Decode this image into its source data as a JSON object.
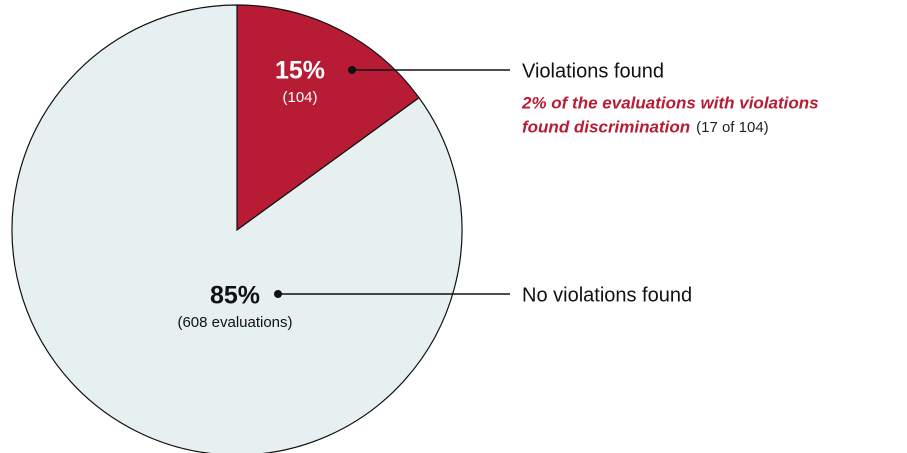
{
  "chart_data": {
    "type": "pie",
    "categories": [
      "Violations found",
      "No violations found"
    ],
    "values": [
      15,
      85
    ],
    "value_labels": [
      "15%",
      "85%"
    ],
    "count_labels": [
      "(104)",
      "(608 evaluations)"
    ],
    "colors": [
      "#b71c34",
      "#e6f0f0"
    ],
    "annotation": [
      "2% of the evaluations with violations",
      "found discrimination"
    ],
    "annotation_note": "(17 of 104)"
  }
}
